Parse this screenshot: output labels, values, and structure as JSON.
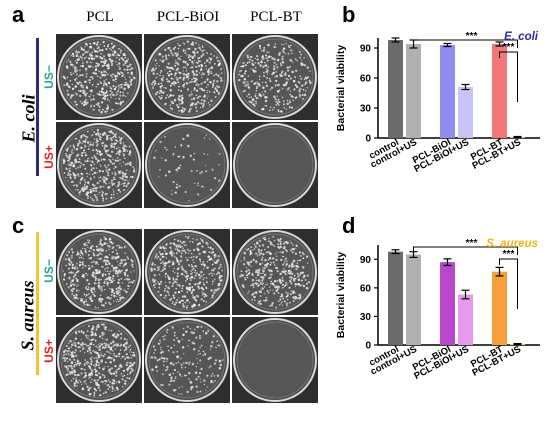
{
  "panels": {
    "a": "a",
    "b": "b",
    "c": "c",
    "d": "d"
  },
  "columns": [
    "PCL",
    "PCL-BiOI",
    "PCL-BT"
  ],
  "rows": {
    "neg": "US−",
    "pos": "US+"
  },
  "species": {
    "ecoli": "E. coli",
    "saureus": "S. aureus"
  },
  "colors": {
    "ecoli_bar": "#2b2b7a",
    "saureus_bar": "#f3c531",
    "us_neg": "#2aa198",
    "us_pos": "#e02020"
  },
  "plates": {
    "ecoli_neg": [
      0.85,
      0.8,
      0.6
    ],
    "ecoli_pos": [
      0.9,
      0.12,
      0.0
    ],
    "saureus_neg": [
      0.85,
      0.8,
      0.75
    ],
    "saureus_pos": [
      0.9,
      0.35,
      0.0
    ]
  },
  "chart_data": [
    {
      "type": "bar",
      "panel": "b",
      "title": "E. coli",
      "title_color": "#2b2ba0",
      "ylabel": "Bacterial viability",
      "ylim": [
        0,
        100
      ],
      "yticks": [
        0,
        30,
        60,
        90
      ],
      "categories": [
        "control",
        "control+US",
        "PCL-BiOI",
        "PCL-BiOI+US",
        "PCL-BT",
        "PCL-BT+US"
      ],
      "values": [
        98,
        94,
        93,
        51,
        94,
        1
      ],
      "errors": [
        2,
        4,
        1.5,
        2.5,
        2,
        0.5
      ],
      "colors": [
        "#6b6b6b",
        "#b0b0b0",
        "#8f8cf0",
        "#c8c4f8",
        "#f2777a",
        "#f9b0b2"
      ],
      "significance": [
        {
          "label": "***",
          "from": "control+US",
          "to": "PCL-BT+US"
        },
        {
          "label": "***",
          "from": "PCL-BT",
          "to": "PCL-BT+US"
        }
      ]
    },
    {
      "type": "bar",
      "panel": "d",
      "title": "S. aureus",
      "title_color": "#f3b41b",
      "ylabel": "Bacterial viability",
      "ylim": [
        0,
        105
      ],
      "yticks": [
        0,
        30,
        60,
        90
      ],
      "categories": [
        "control",
        "control+US",
        "PCL-BiOI",
        "PCL-BiOI+US",
        "PCL-BT",
        "PCL-BT+US"
      ],
      "values": [
        98,
        95,
        87,
        53,
        77,
        1
      ],
      "errors": [
        2,
        3,
        3.5,
        4.5,
        4.5,
        0.5
      ],
      "colors": [
        "#6b6b6b",
        "#b0b0b0",
        "#b847c9",
        "#e59af0",
        "#f5a03a",
        "#fbd29a"
      ],
      "significance": [
        {
          "label": "***",
          "from": "control+US",
          "to": "PCL-BT+US"
        },
        {
          "label": "***",
          "from": "PCL-BT",
          "to": "PCL-BT+US"
        }
      ]
    }
  ]
}
